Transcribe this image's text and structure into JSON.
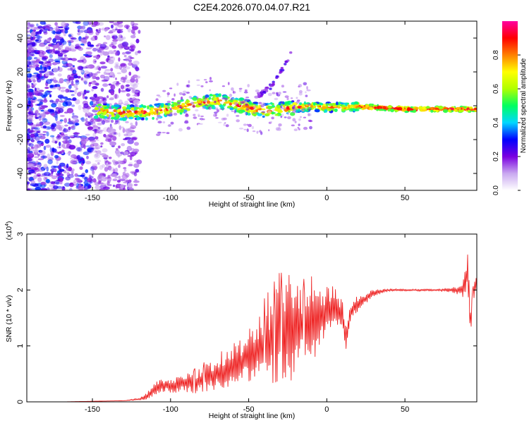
{
  "title": "C2E4.2026.070.04.07.R21",
  "chart_data": [
    {
      "type": "heatmap",
      "title": "C2E4.2026.070.04.07.R21",
      "xlabel": "Height of straight line (km)",
      "ylabel": "Frequency (Hz)",
      "xlim": [
        -192,
        96
      ],
      "ylim": [
        -50,
        50
      ],
      "xticks": [
        -150,
        -100,
        -50,
        0,
        50
      ],
      "xtick_labels": [
        "-150",
        "-100",
        "-50",
        "0",
        "50"
      ],
      "yticks": [
        -40,
        -20,
        0,
        20,
        40
      ],
      "ytick_labels": [
        "-40",
        "-20",
        "0",
        "20",
        "40"
      ],
      "ridge": {
        "description": "frequency centroid of the strong echo band vs height",
        "x": [
          -145,
          -130,
          -120,
          -110,
          -100,
          -90,
          -80,
          -70,
          -60,
          -50,
          -40,
          -30,
          -20,
          -10,
          0,
          10,
          20,
          30,
          40,
          50,
          60,
          70,
          80,
          90,
          95
        ],
        "y": [
          -3,
          -4,
          -4,
          -3.5,
          -2,
          0,
          2,
          3,
          1,
          -1,
          -3,
          -2,
          -1,
          -0.5,
          -1,
          -1,
          -0.5,
          -1,
          -1.5,
          -2,
          -2,
          -2,
          -2,
          -2,
          -2
        ]
      },
      "noise_region_xlim": [
        -192,
        -125
      ],
      "secondary_trace": {
        "x": [
          -45,
          -35,
          -28,
          -22
        ],
        "y": [
          5,
          12,
          22,
          32
        ]
      },
      "colorbar": {
        "label": "Normalized spectral amplitude",
        "range": [
          0.0,
          1.0
        ],
        "ticks": [
          0.0,
          0.2,
          0.4,
          0.6,
          0.8
        ],
        "tick_labels": [
          "0.0",
          "0.2",
          "0.4",
          "0.6",
          "0.8"
        ],
        "colors": [
          "#ffffff",
          "#c9a8f0",
          "#7a00e0",
          "#0000ff",
          "#00d8ff",
          "#00ff60",
          "#b0ff00",
          "#ffff00",
          "#ff8000",
          "#ff0000",
          "#ff00a0"
        ]
      }
    },
    {
      "type": "line",
      "xlabel": "Height of straight line (km)",
      "ylabel": "SNR (10 * v/v)",
      "y_multiplier": "(x10",
      "y_multiplier_exp": "4",
      "y_multiplier_close": ")",
      "xlim": [
        -192,
        96
      ],
      "ylim": [
        0,
        3
      ],
      "xticks": [
        -150,
        -100,
        -50,
        0,
        50
      ],
      "xtick_labels": [
        "-150",
        "-100",
        "-50",
        "0",
        "50"
      ],
      "yticks": [
        0,
        1,
        2,
        3
      ],
      "ytick_labels": [
        "0",
        "1",
        "2",
        "3"
      ],
      "line_color": "#ee2222",
      "series": [
        {
          "name": "SNR",
          "x": [
            -192,
            -170,
            -150,
            -130,
            -120,
            -115,
            -110,
            -105,
            -100,
            -95,
            -90,
            -85,
            -80,
            -75,
            -70,
            -65,
            -60,
            -55,
            -50,
            -45,
            -40,
            -35,
            -30,
            -25,
            -20,
            -15,
            -10,
            -5,
            0,
            5,
            10,
            12,
            15,
            20,
            25,
            30,
            40,
            50,
            60,
            70,
            80,
            85,
            88,
            90,
            92,
            95
          ],
          "y": [
            0.0,
            0.0,
            0.01,
            0.02,
            0.05,
            0.1,
            0.25,
            0.3,
            0.28,
            0.3,
            0.35,
            0.33,
            0.4,
            0.45,
            0.5,
            0.55,
            0.6,
            0.7,
            0.8,
            0.9,
            1.0,
            1.1,
            1.2,
            1.25,
            1.3,
            1.35,
            1.4,
            1.5,
            1.6,
            1.7,
            1.5,
            1.1,
            1.6,
            1.75,
            1.85,
            1.95,
            2.0,
            2.0,
            2.0,
            2.0,
            2.0,
            2.0,
            2.05,
            2.3,
            1.4,
            2.1
          ],
          "fluct": [
            0.0,
            0.0,
            0.0,
            0.0,
            0.02,
            0.05,
            0.1,
            0.1,
            0.1,
            0.12,
            0.15,
            0.18,
            0.2,
            0.22,
            0.25,
            0.28,
            0.3,
            0.35,
            0.4,
            0.5,
            0.6,
            0.7,
            0.8,
            0.7,
            0.8,
            0.6,
            0.6,
            0.5,
            0.4,
            0.3,
            0.25,
            0.2,
            0.15,
            0.1,
            0.08,
            0.05,
            0.02,
            0.02,
            0.02,
            0.02,
            0.03,
            0.08,
            0.2,
            0.35,
            0.3,
            0.1
          ]
        }
      ]
    }
  ]
}
